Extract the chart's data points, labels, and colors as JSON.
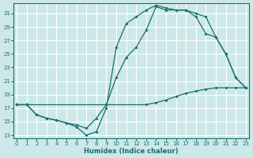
{
  "xlabel": "Humidex (Indice chaleur)",
  "bg_color": "#cce8e8",
  "grid_color": "#ffffff",
  "line_color": "#1a6e6e",
  "xticks": [
    0,
    1,
    2,
    3,
    4,
    5,
    6,
    7,
    8,
    9,
    10,
    11,
    12,
    13,
    14,
    15,
    16,
    17,
    18,
    19,
    20,
    21,
    22,
    23
  ],
  "yticks": [
    13,
    15,
    17,
    19,
    21,
    23,
    25,
    27,
    29,
    31
  ],
  "line1_x": [
    0,
    1,
    9,
    13,
    14,
    15,
    16,
    17,
    18,
    19,
    20,
    21,
    22,
    23
  ],
  "line1_y": [
    17.5,
    17.5,
    17.5,
    17.5,
    17.8,
    18.2,
    18.7,
    19.2,
    19.5,
    19.8,
    20.0,
    20.0,
    20.0,
    20.0
  ],
  "line2_x": [
    0,
    1,
    2,
    3,
    4,
    5,
    6,
    7,
    8,
    9,
    10,
    11,
    12,
    13,
    14,
    15,
    16,
    17,
    18,
    19,
    20,
    21,
    22,
    23
  ],
  "line2_y": [
    17.5,
    17.5,
    16.0,
    15.5,
    15.2,
    14.8,
    14.5,
    14.0,
    15.5,
    17.5,
    21.5,
    24.5,
    26.0,
    28.5,
    32.0,
    31.5,
    31.5,
    31.5,
    30.5,
    28.0,
    27.5,
    25.0,
    21.5,
    20.0
  ],
  "line3_x": [
    0,
    1,
    2,
    3,
    4,
    5,
    6,
    7,
    8,
    9,
    10,
    11,
    12,
    13,
    14,
    15,
    16,
    17,
    18,
    19,
    20,
    21,
    22,
    23
  ],
  "line3_y": [
    17.5,
    17.5,
    16.0,
    15.5,
    15.2,
    14.8,
    14.2,
    13.0,
    13.5,
    17.0,
    26.0,
    29.5,
    30.5,
    31.5,
    32.2,
    31.8,
    31.5,
    31.5,
    31.0,
    30.5,
    27.5,
    25.0,
    21.5,
    20.0
  ]
}
